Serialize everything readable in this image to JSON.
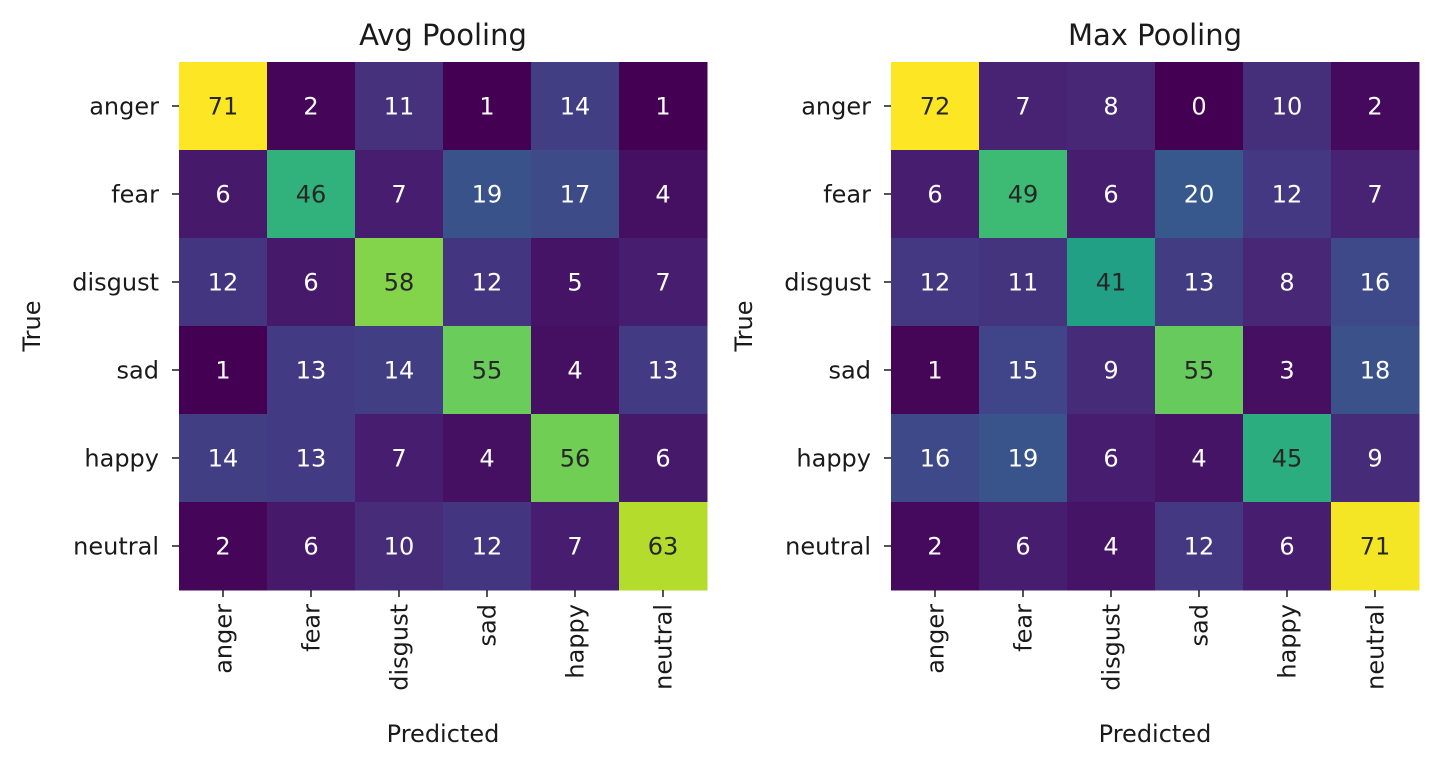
{
  "chart_data": [
    {
      "type": "heatmap",
      "title": "Avg Pooling",
      "xlabel": "Predicted",
      "ylabel": "True",
      "x_categories": [
        "anger",
        "fear",
        "disgust",
        "sad",
        "happy",
        "neutral"
      ],
      "y_categories": [
        "anger",
        "fear",
        "disgust",
        "sad",
        "happy",
        "neutral"
      ],
      "values": [
        [
          71,
          2,
          11,
          1,
          14,
          1
        ],
        [
          6,
          46,
          7,
          19,
          17,
          4
        ],
        [
          12,
          6,
          58,
          12,
          5,
          7
        ],
        [
          1,
          13,
          14,
          55,
          4,
          13
        ],
        [
          14,
          13,
          7,
          4,
          56,
          6
        ],
        [
          2,
          6,
          10,
          12,
          7,
          63
        ]
      ],
      "colormap": "viridis",
      "colorbar": false
    },
    {
      "type": "heatmap",
      "title": "Max Pooling",
      "xlabel": "Predicted",
      "ylabel": "True",
      "x_categories": [
        "anger",
        "fear",
        "disgust",
        "sad",
        "happy",
        "neutral"
      ],
      "y_categories": [
        "anger",
        "fear",
        "disgust",
        "sad",
        "happy",
        "neutral"
      ],
      "values": [
        [
          72,
          7,
          8,
          0,
          10,
          2
        ],
        [
          6,
          49,
          6,
          20,
          12,
          7
        ],
        [
          12,
          11,
          41,
          13,
          8,
          16
        ],
        [
          1,
          15,
          9,
          55,
          3,
          18
        ],
        [
          16,
          19,
          6,
          4,
          45,
          9
        ],
        [
          2,
          6,
          4,
          12,
          6,
          71
        ]
      ],
      "colormap": "viridis",
      "colorbar": false
    }
  ],
  "colors": {
    "text_dark": "#262626",
    "text_light": "#ffffff"
  }
}
